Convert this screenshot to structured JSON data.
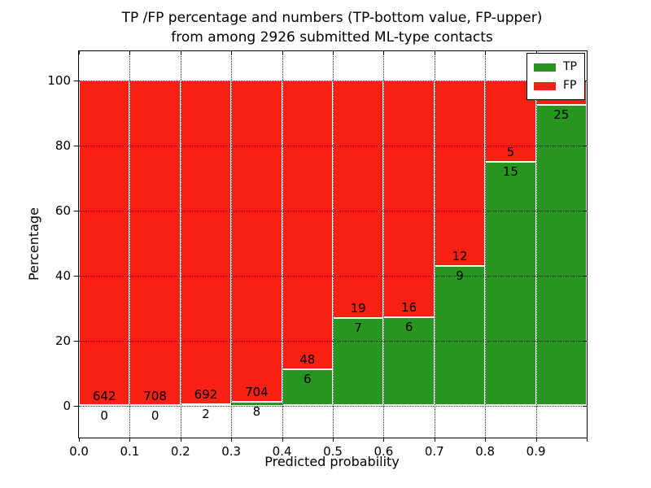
{
  "figure": {
    "title_line1": "TP /FP percentage and numbers (TP-bottom value, FP-upper)",
    "title_line2": "from among 2926 submitted ML-type contacts",
    "xlabel": "Predicted probability",
    "ylabel": "Percentage"
  },
  "legend": {
    "items": [
      {
        "label": "TP",
        "color": "#27961f"
      },
      {
        "label": "FP",
        "color": "#fb2014"
      }
    ]
  },
  "chart_data": {
    "type": "bar",
    "stacked": true,
    "normalized_to_percent": true,
    "title": "TP /FP percentage and numbers (TP-bottom value, FP-upper) from among 2926 submitted ML-type contacts",
    "xlabel": "Predicted probability",
    "ylabel": "Percentage",
    "total_submitted_contacts": 2926,
    "bin_width": 0.1,
    "bin_starts": [
      0.0,
      0.1,
      0.2,
      0.3,
      0.4,
      0.5,
      0.6,
      0.7,
      0.8,
      0.9
    ],
    "series": [
      {
        "name": "TP",
        "color": "#27961f",
        "counts": [
          0,
          0,
          2,
          8,
          6,
          7,
          6,
          9,
          15,
          25
        ]
      },
      {
        "name": "FP",
        "color": "#fb2014",
        "counts": [
          642,
          708,
          692,
          704,
          48,
          19,
          16,
          12,
          5,
          2
        ]
      }
    ],
    "tp_percent_of_bin": [
      0.0,
      0.0,
      0.29,
      1.12,
      11.11,
      26.92,
      27.27,
      42.86,
      75.0,
      92.59
    ],
    "x_ticks": [
      "0.0",
      "0.1",
      "0.2",
      "0.3",
      "0.4",
      "0.5",
      "0.6",
      "0.7",
      "0.8",
      "0.9"
    ],
    "y_ticks": [
      0,
      20,
      40,
      60,
      80,
      100
    ],
    "xlim": [
      0.0,
      1.0
    ],
    "ylim": [
      -9.7,
      109.2
    ],
    "grid": "dotted",
    "bar_edge_color": "#ffffff",
    "legend_position": "upper right",
    "annotation_rule": "FP count printed above the TP/FP boundary, TP count printed below it"
  }
}
